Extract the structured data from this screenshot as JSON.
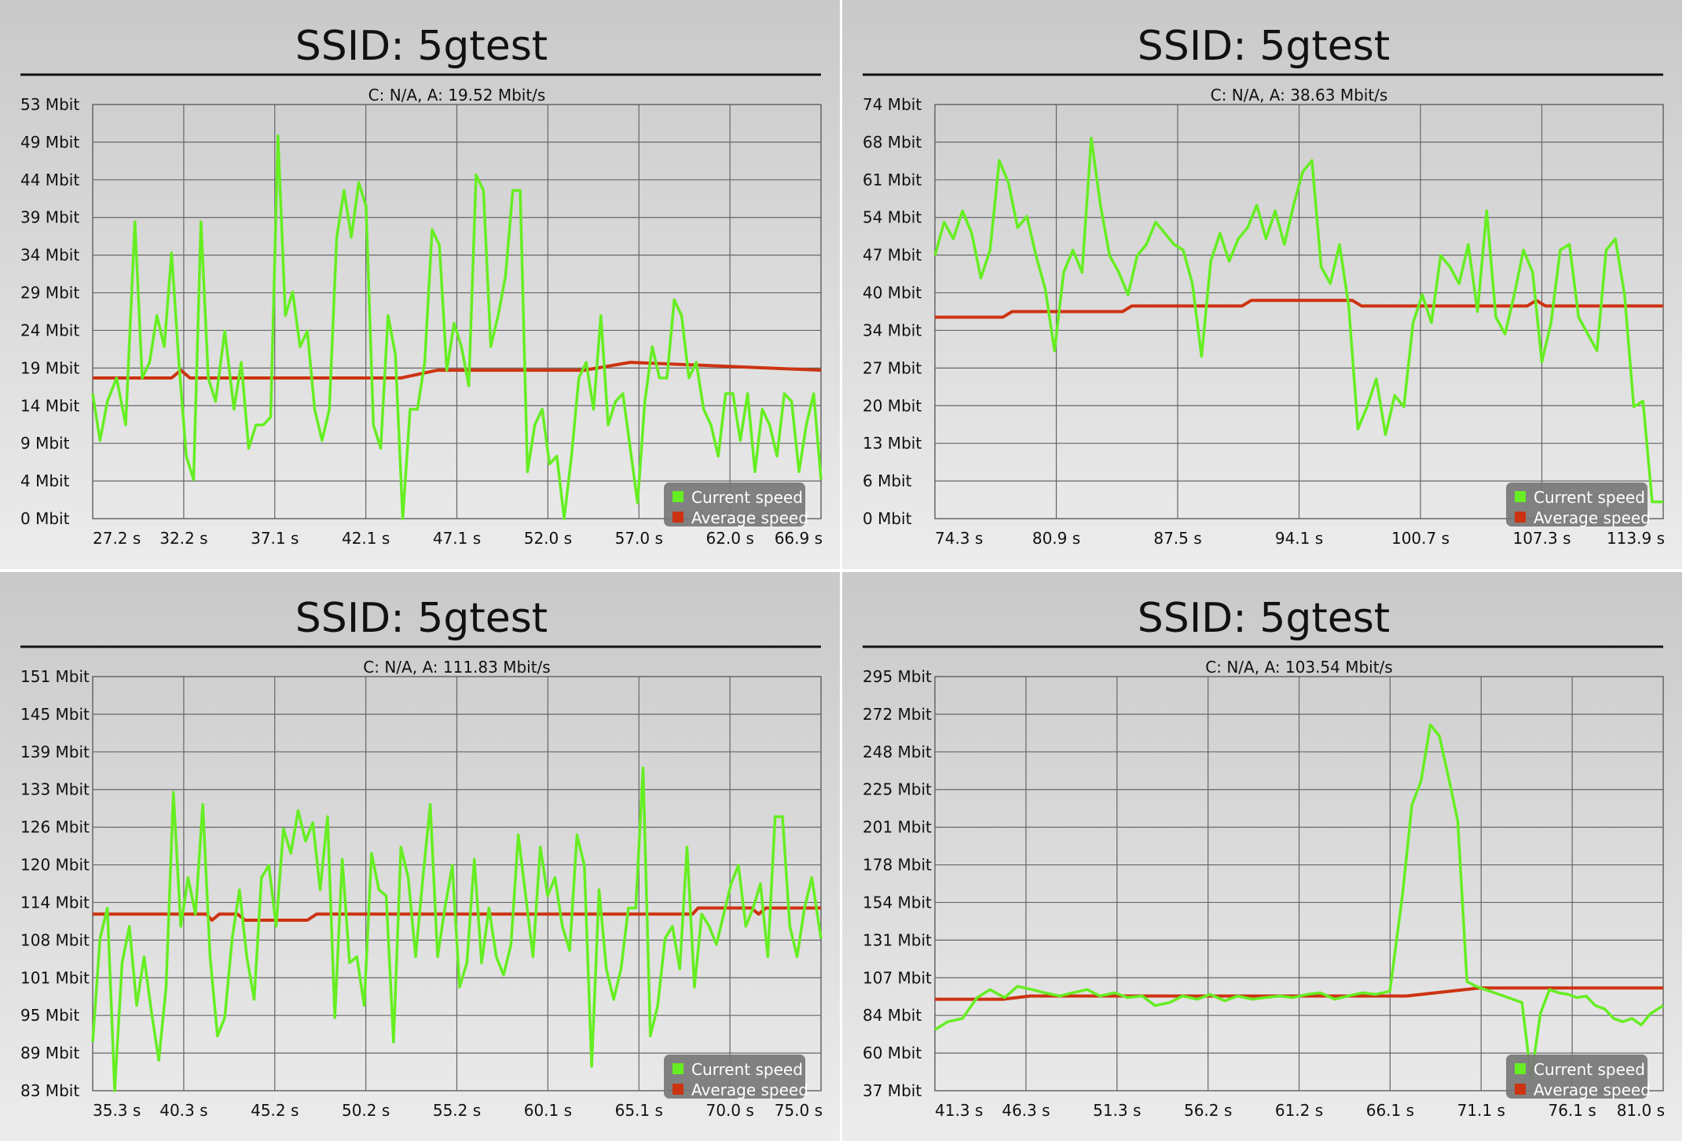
{
  "colors": {
    "current": "#66ee22",
    "average": "#cc3311",
    "grid": "#666666",
    "legend_bg": "#777777"
  },
  "legend": {
    "current": "Current speed",
    "average": "Average speed"
  },
  "chart_data": [
    {
      "type": "line",
      "title": "SSID: 5gtest",
      "subtitle": "C: N/A, A: 19.52 Mbit/s",
      "xlim": [
        27.2,
        66.9
      ],
      "ylim": [
        0,
        53
      ],
      "xticks": [
        "27.2 s",
        "32.2 s",
        "37.1 s",
        "42.1 s",
        "47.1 s",
        "52.0 s",
        "57.0 s",
        "62.0 s",
        "66.9 s"
      ],
      "yticks": [
        "0 Mbit",
        "4 Mbit",
        "9 Mbit",
        "14 Mbit",
        "19 Mbit",
        "24 Mbit",
        "29 Mbit",
        "34 Mbit",
        "39 Mbit",
        "44 Mbit",
        "49 Mbit",
        "53 Mbit"
      ],
      "legend_position": "bottom-right",
      "grid": true,
      "series": [
        {
          "name": "Current speed",
          "x": [
            27.2,
            27.6,
            28.0,
            28.5,
            29.0,
            29.5,
            29.9,
            30.3,
            30.7,
            31.1,
            31.5,
            31.9,
            32.3,
            32.7,
            33.1,
            33.5,
            33.9,
            34.4,
            34.9,
            35.3,
            35.7,
            36.1,
            36.5,
            36.9,
            37.3,
            37.7,
            38.1,
            38.5,
            38.9,
            39.3,
            39.7,
            40.1,
            40.5,
            40.9,
            41.3,
            41.7,
            42.1,
            42.5,
            42.9,
            43.3,
            43.7,
            44.1,
            44.5,
            44.9,
            45.3,
            45.7,
            46.1,
            46.5,
            46.9,
            47.3,
            47.7,
            48.1,
            48.5,
            48.9,
            49.3,
            49.7,
            50.1,
            50.5,
            50.9,
            51.3,
            51.7,
            52.1,
            52.5,
            52.9,
            53.3,
            53.7,
            54.1,
            54.5,
            54.9,
            55.3,
            55.7,
            56.1,
            56.5,
            56.9,
            57.3,
            57.7,
            58.1,
            58.5,
            58.9,
            59.3,
            59.7,
            60.1,
            60.5,
            60.9,
            61.3,
            61.7,
            62.1,
            62.5,
            62.9,
            63.3,
            63.7,
            64.1,
            64.5,
            64.9,
            65.3,
            65.7,
            66.1,
            66.5,
            66.9
          ],
          "values": [
            16,
            10,
            15,
            18,
            12,
            38,
            18,
            20,
            26,
            22,
            34,
            20,
            8,
            5,
            38,
            18,
            15,
            24,
            14,
            20,
            9,
            12,
            12,
            13,
            49,
            26,
            29,
            22,
            24,
            14,
            10,
            14,
            36,
            42,
            36,
            43,
            40,
            12,
            9,
            26,
            21,
            0,
            14,
            14,
            20,
            37,
            35,
            19,
            25,
            22,
            17,
            44,
            42,
            22,
            26,
            31,
            42,
            42,
            6,
            12,
            14,
            7,
            8,
            0,
            8,
            18,
            20,
            14,
            26,
            12,
            15,
            16,
            9,
            2,
            15,
            22,
            18,
            18,
            28,
            26,
            18,
            20,
            14,
            12,
            8,
            16,
            16,
            10,
            16,
            6,
            14,
            12,
            8,
            16,
            15,
            6,
            12,
            16,
            5
          ]
        },
        {
          "name": "Average speed",
          "x": [
            27.2,
            31.5,
            32.0,
            32.5,
            44.0,
            46.0,
            54.0,
            56.5,
            66.9
          ],
          "values": [
            18,
            18,
            19,
            18,
            18,
            19,
            19,
            20,
            19
          ]
        }
      ]
    },
    {
      "type": "line",
      "title": "SSID: 5gtest",
      "subtitle": "C: N/A, A: 38.63 Mbit/s",
      "xlim": [
        74.3,
        113.9
      ],
      "ylim": [
        0,
        74
      ],
      "xticks": [
        "74.3 s",
        "80.9 s",
        "87.5 s",
        "94.1 s",
        "100.7 s",
        "107.3 s",
        "113.9 s"
      ],
      "yticks": [
        "0 Mbit",
        "6 Mbit",
        "13 Mbit",
        "20 Mbit",
        "27 Mbit",
        "34 Mbit",
        "40 Mbit",
        "47 Mbit",
        "54 Mbit",
        "61 Mbit",
        "68 Mbit",
        "74 Mbit"
      ],
      "legend_position": "bottom-right",
      "grid": true,
      "series": [
        {
          "name": "Current speed",
          "x": [
            74.3,
            74.8,
            75.3,
            75.8,
            76.3,
            76.8,
            77.3,
            77.8,
            78.3,
            78.8,
            79.3,
            79.8,
            80.3,
            80.8,
            81.3,
            81.8,
            82.3,
            82.8,
            83.3,
            83.8,
            84.3,
            84.8,
            85.3,
            85.8,
            86.3,
            86.8,
            87.3,
            87.8,
            88.3,
            88.8,
            89.3,
            89.8,
            90.3,
            90.8,
            91.3,
            91.8,
            92.3,
            92.8,
            93.3,
            93.8,
            94.3,
            94.8,
            95.3,
            95.8,
            96.3,
            96.8,
            97.3,
            97.8,
            98.3,
            98.8,
            99.3,
            99.8,
            100.3,
            100.8,
            101.3,
            101.8,
            102.3,
            102.8,
            103.3,
            103.8,
            104.3,
            104.8,
            105.3,
            105.8,
            106.3,
            106.8,
            107.3,
            107.8,
            108.3,
            108.8,
            109.3,
            109.8,
            110.3,
            110.8,
            111.3,
            111.8,
            112.3,
            112.8,
            113.3,
            113.9
          ],
          "values": [
            47,
            53,
            50,
            55,
            51,
            43,
            48,
            64,
            60,
            52,
            54,
            47,
            41,
            30,
            44,
            48,
            44,
            68,
            56,
            47,
            44,
            40,
            47,
            49,
            53,
            51,
            49,
            48,
            42,
            29,
            46,
            51,
            46,
            50,
            52,
            56,
            50,
            55,
            49,
            56,
            62,
            64,
            45,
            42,
            49,
            38,
            16,
            20,
            25,
            15,
            22,
            20,
            35,
            40,
            35,
            47,
            45,
            42,
            49,
            37,
            55,
            36,
            33,
            40,
            48,
            44,
            28,
            35,
            48,
            49,
            36,
            33,
            30,
            48,
            50,
            40,
            20,
            21,
            3,
            3
          ]
        },
        {
          "name": "Average speed",
          "x": [
            74.3,
            78.0,
            78.5,
            84.5,
            85.0,
            91.0,
            91.5,
            97.0,
            97.5,
            106.5,
            107.0,
            107.5,
            113.9
          ],
          "values": [
            36,
            36,
            37,
            37,
            38,
            38,
            39,
            39,
            38,
            38,
            39,
            38,
            38
          ]
        }
      ]
    },
    {
      "type": "line",
      "title": "SSID: 5gtest",
      "subtitle": "C: N/A, A: 111.83 Mbit/s",
      "xlim": [
        35.3,
        75.0
      ],
      "ylim": [
        83,
        151
      ],
      "xticks": [
        "35.3 s",
        "40.3 s",
        "45.2 s",
        "50.2 s",
        "55.2 s",
        "60.1 s",
        "65.1 s",
        "70.0 s",
        "75.0 s"
      ],
      "yticks": [
        "83 Mbit",
        "89 Mbit",
        "95 Mbit",
        "101 Mbit",
        "108 Mbit",
        "114 Mbit",
        "120 Mbit",
        "126 Mbit",
        "133 Mbit",
        "139 Mbit",
        "145 Mbit",
        "151 Mbit"
      ],
      "legend_position": "bottom-right",
      "grid": true,
      "series": [
        {
          "name": "Current speed",
          "x": [
            35.3,
            35.7,
            36.1,
            36.5,
            36.9,
            37.3,
            37.7,
            38.1,
            38.5,
            38.9,
            39.3,
            39.7,
            40.1,
            40.5,
            40.9,
            41.3,
            41.7,
            42.1,
            42.5,
            42.9,
            43.3,
            43.7,
            44.1,
            44.5,
            44.9,
            45.3,
            45.7,
            46.1,
            46.5,
            46.9,
            47.3,
            47.7,
            48.1,
            48.5,
            48.9,
            49.3,
            49.7,
            50.1,
            50.5,
            50.9,
            51.3,
            51.7,
            52.1,
            52.5,
            52.9,
            53.3,
            53.7,
            54.1,
            54.5,
            54.9,
            55.3,
            55.7,
            56.1,
            56.5,
            56.9,
            57.3,
            57.7,
            58.1,
            58.5,
            58.9,
            59.3,
            59.7,
            60.1,
            60.5,
            60.9,
            61.3,
            61.7,
            62.1,
            62.5,
            62.9,
            63.3,
            63.7,
            64.1,
            64.5,
            64.9,
            65.3,
            65.7,
            66.1,
            66.5,
            66.9,
            67.3,
            67.7,
            68.1,
            68.5,
            68.9,
            69.3,
            69.7,
            70.1,
            70.5,
            70.9,
            71.3,
            71.7,
            72.1,
            72.5,
            72.9,
            73.3,
            73.7,
            74.1,
            74.5,
            75.0
          ],
          "values": [
            91,
            108,
            113,
            83,
            104,
            110,
            97,
            105,
            96,
            88,
            100,
            132,
            110,
            118,
            112,
            130,
            105,
            92,
            95,
            108,
            116,
            105,
            98,
            118,
            120,
            110,
            126,
            122,
            129,
            124,
            127,
            116,
            128,
            95,
            121,
            104,
            105,
            97,
            122,
            116,
            115,
            91,
            123,
            118,
            105,
            118,
            130,
            105,
            113,
            120,
            100,
            104,
            121,
            104,
            113,
            105,
            102,
            107,
            125,
            115,
            105,
            123,
            115,
            118,
            110,
            106,
            125,
            120,
            87,
            116,
            103,
            98,
            103,
            113,
            113,
            136,
            92,
            97,
            108,
            110,
            103,
            123,
            100,
            112,
            110,
            107,
            112,
            117,
            120,
            110,
            113,
            117,
            105,
            128,
            128,
            110,
            105,
            113,
            118,
            108
          ]
        },
        {
          "name": "Average speed",
          "x": [
            35.3,
            41.5,
            41.8,
            42.2,
            42.6,
            42.9,
            43.2,
            43.6,
            44.0,
            47.0,
            47.5,
            59.5,
            60.0,
            68.0,
            68.3,
            68.7,
            71.2,
            71.6,
            72.0,
            75.0
          ],
          "values": [
            112,
            112,
            111,
            112,
            112,
            112,
            112,
            111,
            111,
            111,
            112,
            112,
            112,
            112,
            113,
            113,
            113,
            112,
            113,
            113
          ]
        }
      ]
    },
    {
      "type": "line",
      "title": "SSID: 5gtest",
      "subtitle": "C: N/A, A: 103.54 Mbit/s",
      "xlim": [
        41.3,
        81.0
      ],
      "ylim": [
        37,
        295
      ],
      "xticks": [
        "41.3 s",
        "46.3 s",
        "51.3 s",
        "56.2 s",
        "61.2 s",
        "66.1 s",
        "71.1 s",
        "76.1 s",
        "81.0 s"
      ],
      "yticks": [
        "37 Mbit",
        "60 Mbit",
        "84 Mbit",
        "107 Mbit",
        "131 Mbit",
        "154 Mbit",
        "178 Mbit",
        "201 Mbit",
        "225 Mbit",
        "248 Mbit",
        "272 Mbit",
        "295 Mbit"
      ],
      "legend_position": "bottom-right",
      "grid": true,
      "series": [
        {
          "name": "Current speed",
          "x": [
            41.3,
            42.0,
            42.8,
            43.6,
            44.3,
            45.1,
            45.8,
            46.6,
            47.3,
            48.1,
            48.8,
            49.6,
            50.3,
            51.1,
            51.8,
            52.6,
            53.3,
            54.1,
            54.8,
            55.6,
            56.3,
            57.1,
            57.8,
            58.6,
            59.3,
            60.1,
            60.8,
            61.6,
            62.3,
            63.1,
            63.8,
            64.6,
            65.3,
            66.1,
            66.8,
            67.3,
            67.8,
            68.3,
            68.8,
            69.3,
            69.8,
            70.3,
            70.8,
            71.3,
            71.8,
            72.3,
            72.8,
            73.3,
            73.8,
            74.3,
            74.8,
            75.3,
            75.8,
            76.3,
            76.8,
            77.3,
            77.8,
            78.3,
            78.8,
            79.3,
            79.8,
            80.3,
            81.0
          ],
          "values": [
            75,
            80,
            82,
            95,
            100,
            95,
            102,
            100,
            98,
            96,
            98,
            100,
            96,
            98,
            95,
            96,
            90,
            92,
            96,
            94,
            97,
            93,
            96,
            94,
            95,
            96,
            95,
            97,
            98,
            94,
            96,
            98,
            97,
            99,
            160,
            215,
            230,
            265,
            258,
            232,
            205,
            105,
            102,
            100,
            98,
            96,
            94,
            92,
            45,
            85,
            100,
            98,
            97,
            95,
            96,
            90,
            88,
            82,
            80,
            82,
            78,
            85,
            90
          ]
        },
        {
          "name": "Average speed",
          "x": [
            41.3,
            45.0,
            46.5,
            62.0,
            67.0,
            71.0,
            81.0
          ],
          "values": [
            94,
            94,
            96,
            96,
            96,
            101,
            101
          ]
        }
      ]
    }
  ]
}
